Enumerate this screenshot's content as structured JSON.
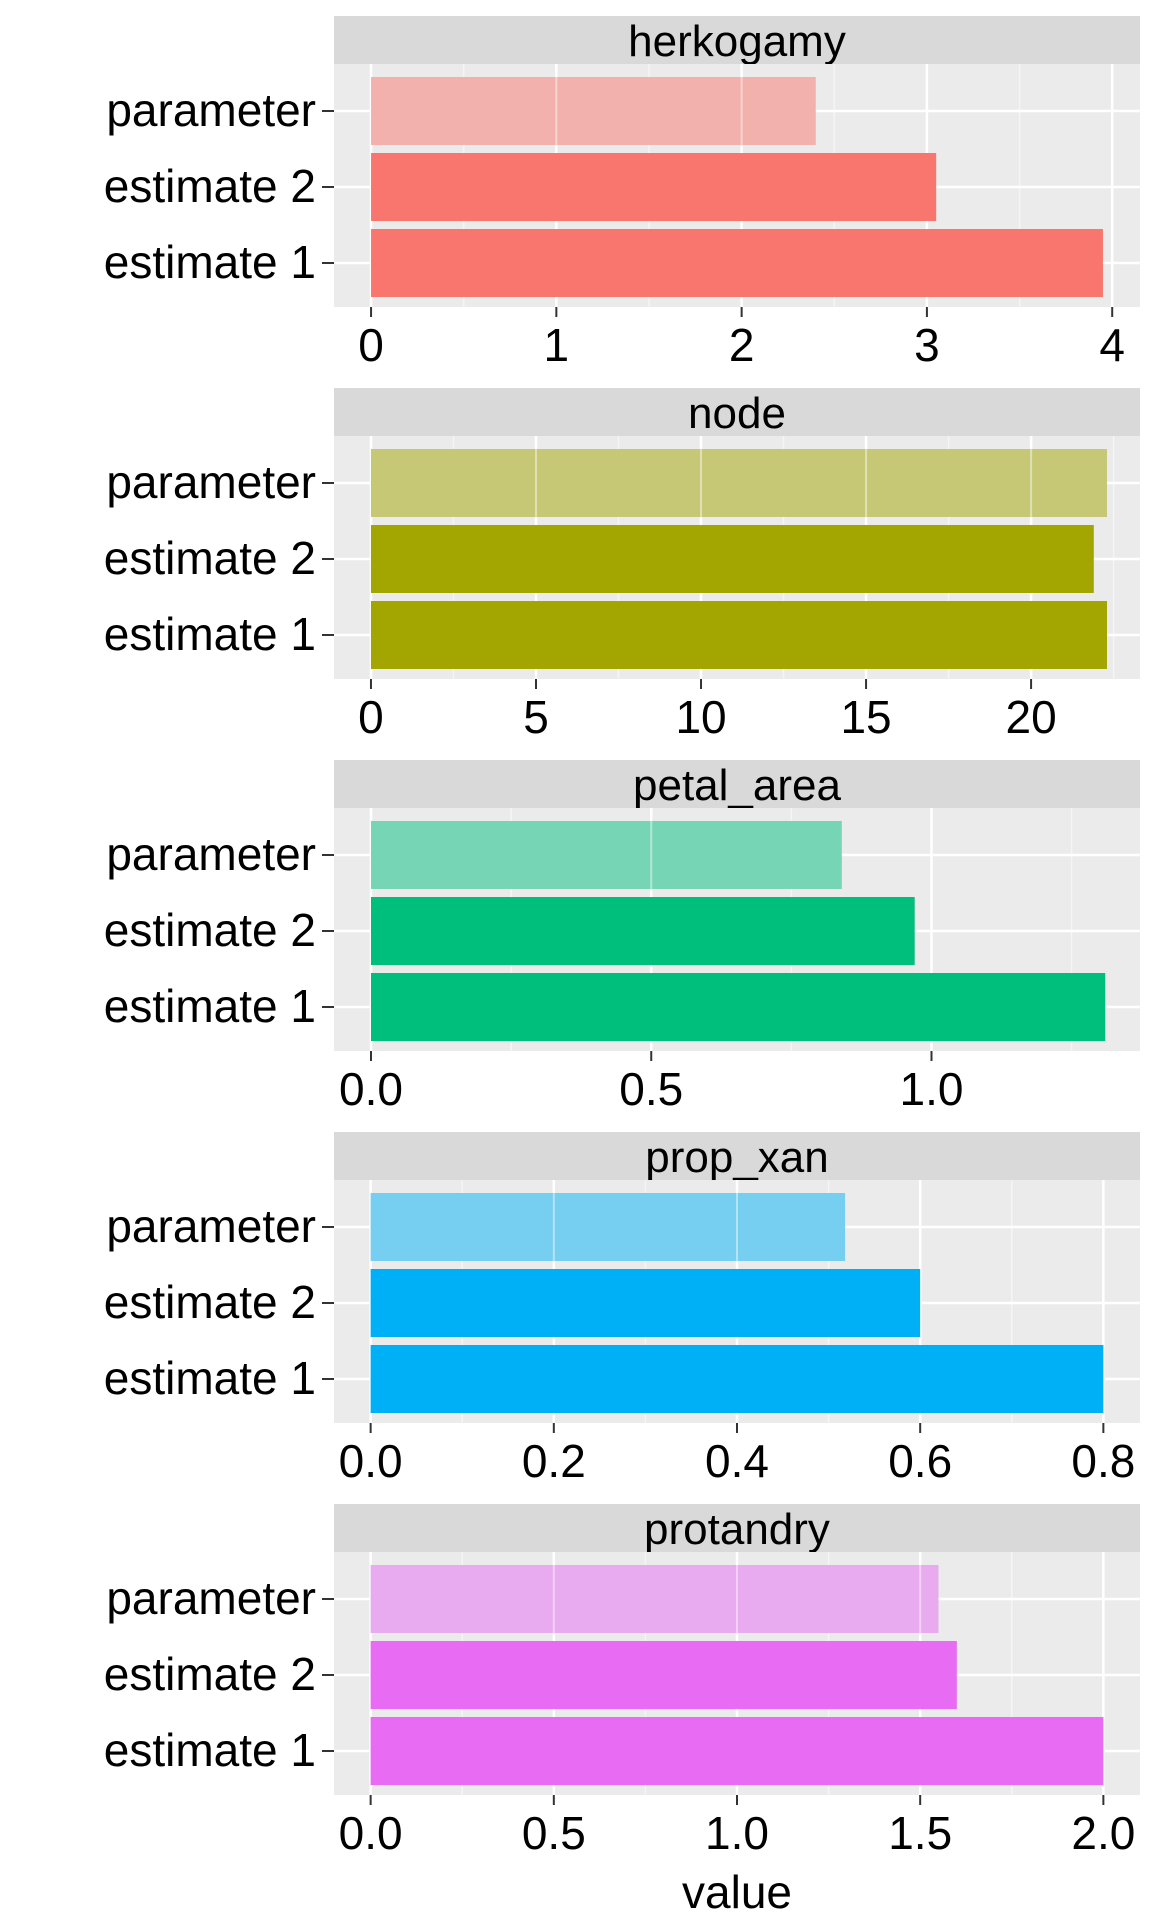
{
  "chart_data": {
    "type": "bar",
    "orientation": "horizontal",
    "xlabel": "value",
    "categories": [
      "parameter",
      "estimate 2",
      "estimate 1"
    ],
    "grid": true,
    "legend": "none",
    "panels": [
      {
        "title": "herkogamy",
        "color": "#F8766D",
        "ticks": [
          0,
          1,
          2,
          3,
          4
        ],
        "tick_labels": [
          "0",
          "1",
          "2",
          "3",
          "4"
        ],
        "xlim": [
          -0.2,
          4.15
        ],
        "bars": [
          {
            "category": "parameter",
            "value": 2.4,
            "faded": true
          },
          {
            "category": "estimate 2",
            "value": 3.05,
            "faded": false
          },
          {
            "category": "estimate 1",
            "value": 3.95,
            "faded": false
          }
        ]
      },
      {
        "title": "node",
        "color": "#A3A500",
        "ticks": [
          0,
          5,
          10,
          15,
          20
        ],
        "tick_labels": [
          "0",
          "5",
          "10",
          "15",
          "20"
        ],
        "xlim": [
          -1.12,
          23.3
        ],
        "bars": [
          {
            "category": "parameter",
            "value": 22.3,
            "faded": true
          },
          {
            "category": "estimate 2",
            "value": 21.9,
            "faded": false
          },
          {
            "category": "estimate 1",
            "value": 22.3,
            "faded": false
          }
        ]
      },
      {
        "title": "petal_area",
        "color": "#00BF7D",
        "ticks": [
          0.0,
          0.5,
          1.0
        ],
        "tick_labels": [
          "0.0",
          "0.5",
          "1.0"
        ],
        "xlim": [
          -0.066,
          1.372
        ],
        "bars": [
          {
            "category": "parameter",
            "value": 0.84,
            "faded": true
          },
          {
            "category": "estimate 2",
            "value": 0.97,
            "faded": false
          },
          {
            "category": "estimate 1",
            "value": 1.31,
            "faded": false
          }
        ]
      },
      {
        "title": "prop_xan",
        "color": "#00B0F6",
        "ticks": [
          0.0,
          0.2,
          0.4,
          0.6,
          0.8
        ],
        "tick_labels": [
          "0.0",
          "0.2",
          "0.4",
          "0.6",
          "0.8"
        ],
        "xlim": [
          -0.04,
          0.84
        ],
        "bars": [
          {
            "category": "parameter",
            "value": 0.518,
            "faded": true
          },
          {
            "category": "estimate 2",
            "value": 0.6,
            "faded": false
          },
          {
            "category": "estimate 1",
            "value": 0.8,
            "faded": false
          }
        ]
      },
      {
        "title": "protandry",
        "color": "#E76BF3",
        "ticks": [
          0.0,
          0.5,
          1.0,
          1.5,
          2.0
        ],
        "tick_labels": [
          "0.0",
          "0.5",
          "1.0",
          "1.5",
          "2.0"
        ],
        "xlim": [
          -0.1,
          2.1
        ],
        "bars": [
          {
            "category": "parameter",
            "value": 1.55,
            "faded": true
          },
          {
            "category": "estimate 2",
            "value": 1.6,
            "faded": false
          },
          {
            "category": "estimate 1",
            "value": 2.0,
            "faded": false
          }
        ]
      }
    ]
  }
}
